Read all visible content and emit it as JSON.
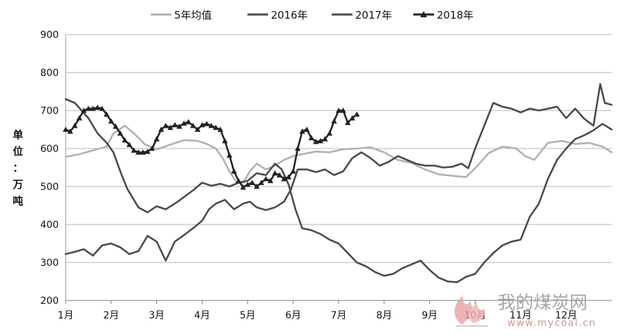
{
  "chart_data": {
    "type": "line",
    "title": "",
    "ylabel": "单位：万吨",
    "ylabel_chars": [
      "单",
      "位",
      "：",
      "万",
      "吨"
    ],
    "ylim": [
      200,
      900
    ],
    "yticks": [
      "900",
      "800",
      "700",
      "600",
      "500",
      "400",
      "300",
      "200"
    ],
    "yticks_values": [
      900,
      800,
      700,
      600,
      500,
      400,
      300,
      200
    ],
    "xlim": [
      1,
      13
    ],
    "xticks": [
      "1月",
      "2月",
      "3月",
      "4月",
      "5月",
      "6月",
      "7月",
      "8月",
      "9月",
      "10月",
      "11月",
      "12月"
    ],
    "grid": "horizontal",
    "legend_position": "top",
    "series": [
      {
        "name": "5年均值",
        "color": "#b0b0b0",
        "marker": "none",
        "x": [
          1.0,
          1.3,
          1.6,
          1.9,
          2.05,
          2.3,
          2.5,
          2.75,
          3.0,
          3.3,
          3.6,
          3.9,
          4.1,
          4.3,
          4.45,
          4.6,
          4.75,
          4.9,
          5.05,
          5.2,
          5.4,
          5.6,
          5.8,
          6.0,
          6.2,
          6.5,
          6.8,
          7.1,
          7.4,
          7.7,
          8.0,
          8.3,
          8.6,
          8.9,
          9.2,
          9.5,
          9.8,
          10.0,
          10.3,
          10.6,
          10.9,
          11.1,
          11.3,
          11.6,
          11.9,
          12.2,
          12.5,
          12.8,
          13.0
        ],
        "y": [
          578,
          585,
          595,
          605,
          640,
          660,
          640,
          610,
          598,
          610,
          622,
          620,
          612,
          600,
          575,
          540,
          512,
          510,
          540,
          560,
          545,
          555,
          570,
          580,
          585,
          592,
          590,
          598,
          600,
          603,
          590,
          570,
          562,
          545,
          532,
          528,
          525,
          548,
          588,
          605,
          600,
          580,
          570,
          615,
          620,
          612,
          615,
          605,
          590
        ]
      },
      {
        "name": "2016年",
        "color": "#4a4a4a",
        "marker": "none",
        "x": [
          1.0,
          1.2,
          1.5,
          1.7,
          1.9,
          2.05,
          2.2,
          2.35,
          2.6,
          2.8,
          3.0,
          3.2,
          3.4,
          3.6,
          3.8,
          4.0,
          4.2,
          4.4,
          4.6,
          4.8,
          5.0,
          5.2,
          5.4,
          5.6,
          5.75,
          5.9,
          6.05,
          6.2,
          6.4,
          6.6,
          6.8,
          7.0,
          7.2,
          7.4,
          7.6,
          7.8,
          8.0,
          8.2,
          8.4,
          8.6,
          8.8,
          9.0,
          9.2,
          9.4,
          9.6,
          9.8,
          10.0,
          10.2,
          10.4,
          10.6,
          10.8,
          11.0,
          11.2,
          11.4,
          11.6,
          11.8,
          12.0,
          12.2,
          12.4,
          12.6,
          12.8,
          13.0
        ],
        "y": [
          730,
          720,
          680,
          640,
          615,
          590,
          540,
          495,
          445,
          432,
          448,
          440,
          455,
          472,
          490,
          510,
          502,
          507,
          500,
          510,
          515,
          535,
          530,
          560,
          545,
          505,
          440,
          390,
          385,
          375,
          360,
          350,
          325,
          300,
          290,
          275,
          265,
          270,
          285,
          295,
          305,
          280,
          260,
          250,
          248,
          262,
          270,
          300,
          325,
          345,
          355,
          360,
          420,
          455,
          520,
          570,
          600,
          625,
          635,
          648,
          665,
          650
        ]
      },
      {
        "name": "2017年",
        "color": "#4a4a4a",
        "marker": "none",
        "x": [
          1.0,
          1.2,
          1.4,
          1.6,
          1.8,
          2.0,
          2.2,
          2.4,
          2.6,
          2.8,
          3.0,
          3.2,
          3.4,
          3.6,
          3.8,
          4.0,
          4.15,
          4.3,
          4.5,
          4.7,
          4.9,
          5.05,
          5.2,
          5.4,
          5.6,
          5.8,
          5.95,
          6.1,
          6.3,
          6.5,
          6.7,
          6.9,
          7.1,
          7.3,
          7.5,
          7.7,
          7.9,
          8.1,
          8.3,
          8.5,
          8.7,
          8.9,
          9.1,
          9.3,
          9.5,
          9.7,
          9.85,
          10.0,
          10.2,
          10.4,
          10.6,
          10.8,
          11.0,
          11.2,
          11.4,
          11.6,
          11.8,
          12.0,
          12.2,
          12.4,
          12.6,
          12.75,
          12.85,
          13.0
        ],
        "y": [
          322,
          328,
          335,
          318,
          345,
          350,
          340,
          322,
          330,
          370,
          355,
          305,
          355,
          372,
          390,
          410,
          440,
          455,
          465,
          440,
          455,
          460,
          445,
          438,
          445,
          460,
          492,
          545,
          545,
          538,
          545,
          530,
          540,
          575,
          590,
          575,
          555,
          565,
          580,
          570,
          560,
          555,
          555,
          550,
          552,
          560,
          548,
          600,
          660,
          720,
          710,
          705,
          695,
          705,
          700,
          705,
          710,
          680,
          705,
          678,
          660,
          770,
          720,
          715
        ]
      },
      {
        "name": "2018年",
        "color": "#222222",
        "marker": "triangle",
        "x": [
          1.0,
          1.1,
          1.2,
          1.3,
          1.4,
          1.5,
          1.6,
          1.7,
          1.8,
          1.9,
          2.0,
          2.1,
          2.2,
          2.3,
          2.4,
          2.5,
          2.6,
          2.7,
          2.8,
          2.9,
          3.0,
          3.1,
          3.2,
          3.3,
          3.4,
          3.5,
          3.6,
          3.7,
          3.8,
          3.9,
          4.0,
          4.1,
          4.2,
          4.3,
          4.4,
          4.5,
          4.6,
          4.7,
          4.8,
          4.9,
          5.0,
          5.1,
          5.2,
          5.3,
          5.4,
          5.5,
          5.6,
          5.7,
          5.8,
          5.9,
          6.0,
          6.1,
          6.2,
          6.3,
          6.4,
          6.5,
          6.6,
          6.7,
          6.8,
          6.9,
          7.0,
          7.1,
          7.2,
          7.3,
          7.4
        ],
        "y": [
          650,
          645,
          660,
          680,
          700,
          705,
          705,
          708,
          705,
          690,
          672,
          658,
          640,
          622,
          610,
          595,
          590,
          590,
          592,
          600,
          625,
          650,
          660,
          655,
          662,
          658,
          666,
          670,
          660,
          650,
          662,
          665,
          660,
          655,
          650,
          620,
          582,
          540,
          515,
          498,
          505,
          510,
          500,
          510,
          520,
          515,
          535,
          530,
          520,
          525,
          540,
          600,
          645,
          650,
          628,
          618,
          620,
          625,
          640,
          672,
          700,
          700,
          668,
          680,
          690
        ]
      }
    ]
  },
  "watermark": {
    "brand": "我的煤炭网",
    "url": "www.mycoal.cn"
  }
}
